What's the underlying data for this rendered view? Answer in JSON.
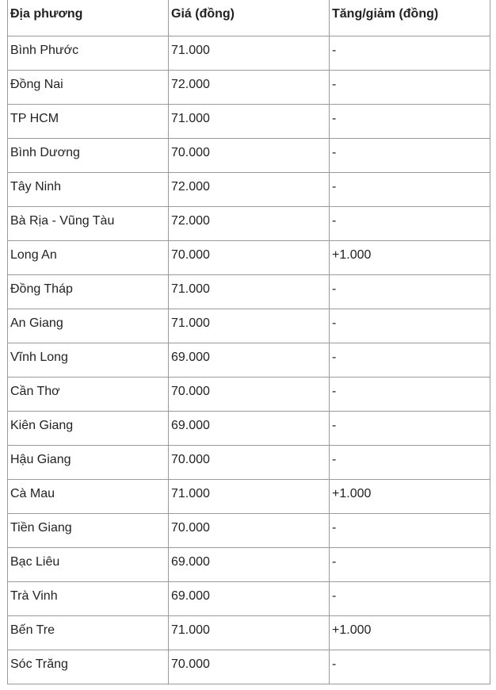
{
  "table": {
    "headers": [
      "Địa phương",
      "Giá (đồng)",
      "Tăng/giảm (đồng)"
    ],
    "rows": [
      [
        "Bình Phước",
        "71.000",
        "-"
      ],
      [
        "Đồng Nai",
        "72.000",
        "-"
      ],
      [
        "TP HCM",
        "71.000",
        "-"
      ],
      [
        "Bình Dương",
        "70.000",
        "-"
      ],
      [
        "Tây Ninh",
        "72.000",
        "-"
      ],
      [
        "Bà Rịa - Vũng Tàu",
        "72.000",
        "-"
      ],
      [
        "Long An",
        "70.000",
        "+1.000"
      ],
      [
        "Đồng Tháp",
        "71.000",
        "-"
      ],
      [
        "An Giang",
        "71.000",
        "-"
      ],
      [
        "Vĩnh Long",
        "69.000",
        "-"
      ],
      [
        "Cần Thơ",
        "70.000",
        "-"
      ],
      [
        "Kiên Giang",
        "69.000",
        "-"
      ],
      [
        "Hậu Giang",
        "70.000",
        "-"
      ],
      [
        "Cà Mau",
        "71.000",
        "+1.000"
      ],
      [
        "Tiền Giang",
        "70.000",
        "-"
      ],
      [
        "Bạc Liêu",
        "69.000",
        "-"
      ],
      [
        "Trà Vinh",
        "69.000",
        "-"
      ],
      [
        "Bến Tre",
        "71.000",
        "+1.000"
      ],
      [
        "Sóc Trăng",
        "70.000",
        "-"
      ]
    ]
  }
}
